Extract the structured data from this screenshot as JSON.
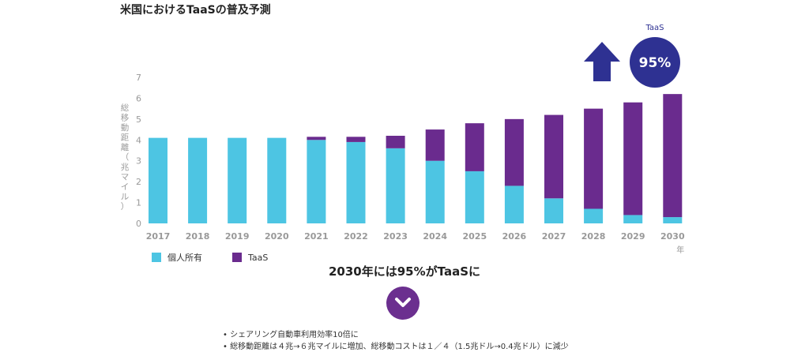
{
  "title": "米国におけるTaaSの普及予測",
  "chart_data": {
    "type": "bar",
    "stacked": true,
    "categories": [
      "2017",
      "2018",
      "2019",
      "2020",
      "2021",
      "2022",
      "2023",
      "2024",
      "2025",
      "2026",
      "2027",
      "2028",
      "2029",
      "2030"
    ],
    "series": [
      {
        "name": "個人所有",
        "color": "#4dc5e3",
        "values": [
          4.1,
          4.1,
          4.1,
          4.1,
          4.0,
          3.9,
          3.6,
          3.0,
          2.5,
          1.8,
          1.2,
          0.7,
          0.4,
          0.3
        ]
      },
      {
        "name": "TaaS",
        "color": "#6a2b8e",
        "values": [
          0,
          0,
          0,
          0,
          0.15,
          0.25,
          0.6,
          1.5,
          2.3,
          3.2,
          4.0,
          4.8,
          5.4,
          5.9
        ]
      }
    ],
    "ylabel": "総移動距離（兆マイル）",
    "xunit": "年",
    "ylim": [
      0,
      7
    ],
    "yticks": [
      0,
      1,
      2,
      3,
      4,
      5,
      6,
      7
    ],
    "grid": false,
    "legend": "bottom-left",
    "annotation": {
      "label": "TaaS",
      "value": "95%"
    }
  },
  "headline": "2030年には95%がTaaSに",
  "icons": {
    "arrow": "arrow-up-icon",
    "chevron": "chevron-down-icon"
  },
  "bullets": [
    "シェアリング自動車利用効率10倍に",
    "総移動距離は４兆→６兆マイルに増加、総移動コストは１／４（1.5兆ドル→0.4兆ドル）に減少"
  ]
}
